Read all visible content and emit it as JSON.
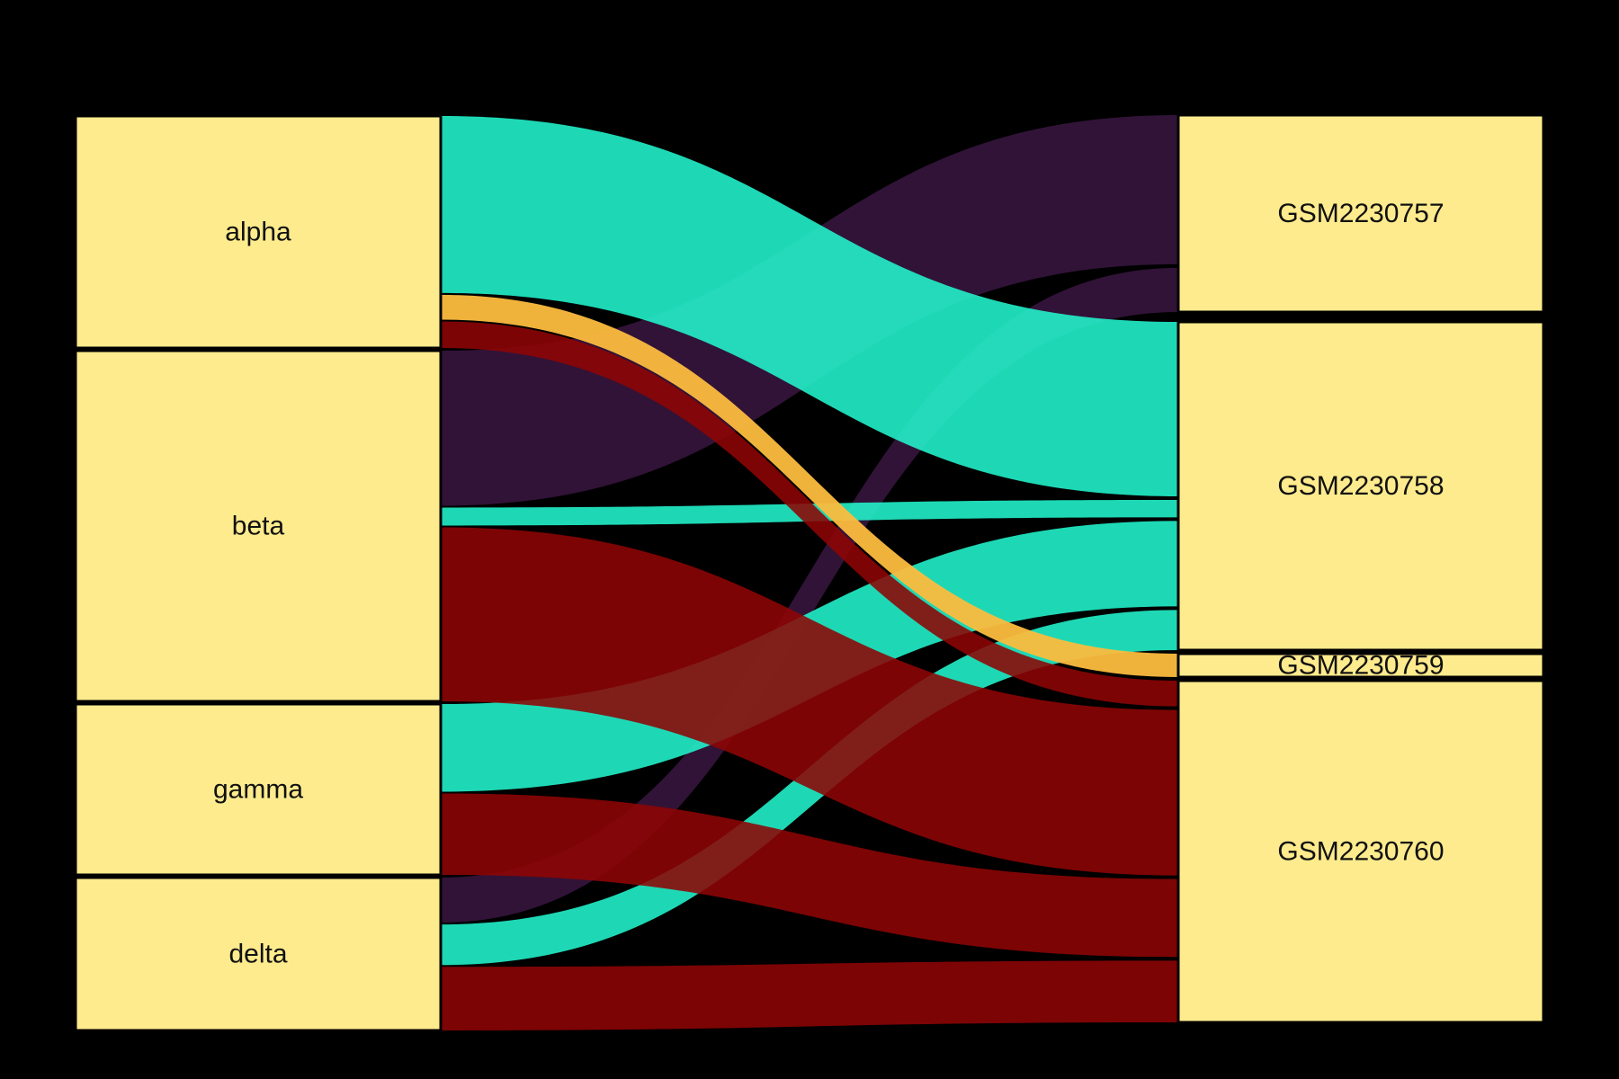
{
  "chart_data": {
    "type": "sankey",
    "title": "",
    "background": "#000000",
    "node_fill": "#FEEB8D",
    "node_border": "#000000",
    "label_color": "#111111",
    "left_nodes": [
      {
        "id": "alpha",
        "label": "alpha"
      },
      {
        "id": "beta",
        "label": "beta"
      },
      {
        "id": "gamma",
        "label": "gamma"
      },
      {
        "id": "delta",
        "label": "delta"
      }
    ],
    "right_nodes": [
      {
        "id": "GSM2230757",
        "label": "GSM2230757"
      },
      {
        "id": "GSM2230758",
        "label": "GSM2230758"
      },
      {
        "id": "GSM2230759",
        "label": "GSM2230759"
      },
      {
        "id": "GSM2230760",
        "label": "GSM2230760"
      }
    ],
    "links": [
      {
        "source": "alpha",
        "target": "GSM2230758",
        "value": 200
      },
      {
        "source": "alpha",
        "target": "GSM2230759",
        "value": 28
      },
      {
        "source": "alpha",
        "target": "GSM2230760",
        "value": 30
      },
      {
        "source": "beta",
        "target": "GSM2230757",
        "value": 172
      },
      {
        "source": "beta",
        "target": "GSM2230758",
        "value": 20
      },
      {
        "source": "beta",
        "target": "GSM2230760",
        "value": 193
      },
      {
        "source": "gamma",
        "target": "GSM2230758",
        "value": 98
      },
      {
        "source": "gamma",
        "target": "GSM2230760",
        "value": 91
      },
      {
        "source": "delta",
        "target": "GSM2230757",
        "value": 51
      },
      {
        "source": "delta",
        "target": "GSM2230758",
        "value": 46
      },
      {
        "source": "delta",
        "target": "GSM2230760",
        "value": 72
      }
    ],
    "link_colors_by_target": {
      "GSM2230757": "#38163F",
      "GSM2230758": "#22F6CE",
      "GSM2230759": "#FCBC3E",
      "GSM2230760": "#8E0505"
    }
  }
}
